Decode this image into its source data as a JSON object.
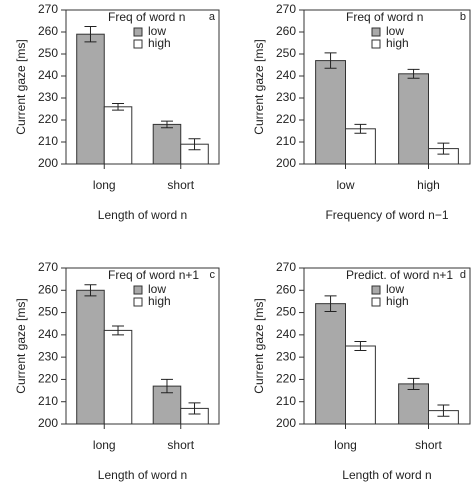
{
  "chart_data": [
    {
      "type": "bar",
      "panel_label": "a",
      "title": "Freq of word n",
      "ylabel": "Current gaze [ms]",
      "xlabel": "Length of word n",
      "categories": [
        "long",
        "short"
      ],
      "series": [
        {
          "name": "low",
          "color": "#a9a9a9",
          "values": [
            259,
            218
          ],
          "errors": [
            3.5,
            1.5
          ]
        },
        {
          "name": "high",
          "color": "#ffffff",
          "values": [
            226,
            209
          ],
          "errors": [
            1.5,
            2.5
          ]
        }
      ],
      "ylim": [
        200,
        270
      ],
      "yticks": [
        200,
        210,
        220,
        230,
        240,
        250,
        260,
        270
      ]
    },
    {
      "type": "bar",
      "panel_label": "b",
      "title": "Freq of word n",
      "ylabel": "Current gaze [ms]",
      "xlabel": "Frequency of word n−1",
      "categories": [
        "low",
        "high"
      ],
      "series": [
        {
          "name": "low",
          "color": "#a9a9a9",
          "values": [
            247,
            241
          ],
          "errors": [
            3.5,
            2
          ]
        },
        {
          "name": "high",
          "color": "#ffffff",
          "values": [
            216,
            207
          ],
          "errors": [
            2,
            2.5
          ]
        }
      ],
      "ylim": [
        200,
        270
      ],
      "yticks": [
        200,
        210,
        220,
        230,
        240,
        250,
        260,
        270
      ]
    },
    {
      "type": "bar",
      "panel_label": "c",
      "title": "Freq of word n+1",
      "ylabel": "Current gaze [ms]",
      "xlabel": "Length of word n",
      "categories": [
        "long",
        "short"
      ],
      "series": [
        {
          "name": "low",
          "color": "#a9a9a9",
          "values": [
            260,
            217
          ],
          "errors": [
            2.5,
            3
          ]
        },
        {
          "name": "high",
          "color": "#ffffff",
          "values": [
            242,
            207
          ],
          "errors": [
            2,
            2.5
          ]
        }
      ],
      "ylim": [
        200,
        270
      ],
      "yticks": [
        200,
        210,
        220,
        230,
        240,
        250,
        260,
        270
      ]
    },
    {
      "type": "bar",
      "panel_label": "d",
      "title": "Predict. of word n+1",
      "ylabel": "Current gaze [ms]",
      "xlabel": "Length of word n",
      "categories": [
        "long",
        "short"
      ],
      "series": [
        {
          "name": "low",
          "color": "#a9a9a9",
          "values": [
            254,
            218
          ],
          "errors": [
            3.5,
            2.5
          ]
        },
        {
          "name": "high",
          "color": "#ffffff",
          "values": [
            235,
            206
          ],
          "errors": [
            2,
            2.5
          ]
        }
      ],
      "ylim": [
        200,
        270
      ],
      "yticks": [
        200,
        210,
        220,
        230,
        240,
        250,
        260,
        270
      ]
    }
  ]
}
